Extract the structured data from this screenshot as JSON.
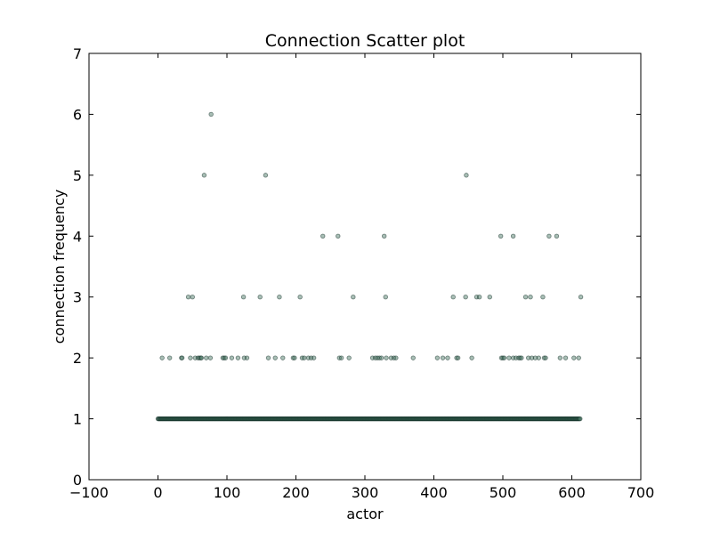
{
  "chart_data": {
    "type": "scatter",
    "title": "Connection Scatter plot",
    "xlabel": "actor",
    "ylabel": "connection frequency",
    "xlim": [
      -100,
      700
    ],
    "ylim": [
      0,
      7
    ],
    "xticks": [
      "−100",
      "0",
      "100",
      "200",
      "300",
      "400",
      "500",
      "600",
      "700"
    ],
    "yticks": [
      "0",
      "1",
      "2",
      "3",
      "4",
      "5",
      "6",
      "7"
    ],
    "grid": false,
    "legend": "none",
    "point_color": "#3d6e5c",
    "baseline": {
      "y": 1,
      "x_from": 0,
      "x_to": 612,
      "step": 1
    },
    "points": [
      {
        "x": 77,
        "y": 6
      },
      {
        "x": 67,
        "y": 5
      },
      {
        "x": 156,
        "y": 5
      },
      {
        "x": 447,
        "y": 5
      },
      {
        "x": 239,
        "y": 4
      },
      {
        "x": 261,
        "y": 4
      },
      {
        "x": 328,
        "y": 4
      },
      {
        "x": 497,
        "y": 4
      },
      {
        "x": 515,
        "y": 4
      },
      {
        "x": 567,
        "y": 4
      },
      {
        "x": 578,
        "y": 4
      },
      {
        "x": 44,
        "y": 3
      },
      {
        "x": 50,
        "y": 3
      },
      {
        "x": 124,
        "y": 3
      },
      {
        "x": 148,
        "y": 3
      },
      {
        "x": 176,
        "y": 3
      },
      {
        "x": 206,
        "y": 3
      },
      {
        "x": 283,
        "y": 3
      },
      {
        "x": 330,
        "y": 3
      },
      {
        "x": 428,
        "y": 3
      },
      {
        "x": 446,
        "y": 3
      },
      {
        "x": 462,
        "y": 3
      },
      {
        "x": 466,
        "y": 3
      },
      {
        "x": 481,
        "y": 3
      },
      {
        "x": 533,
        "y": 3
      },
      {
        "x": 540,
        "y": 3
      },
      {
        "x": 558,
        "y": 3
      },
      {
        "x": 613,
        "y": 3
      },
      {
        "x": 6,
        "y": 2
      },
      {
        "x": 17,
        "y": 2
      },
      {
        "x": 34,
        "y": 2
      },
      {
        "x": 35,
        "y": 2
      },
      {
        "x": 47,
        "y": 2
      },
      {
        "x": 54,
        "y": 2
      },
      {
        "x": 58,
        "y": 2
      },
      {
        "x": 60,
        "y": 2
      },
      {
        "x": 62,
        "y": 2
      },
      {
        "x": 63,
        "y": 2
      },
      {
        "x": 70,
        "y": 2
      },
      {
        "x": 76,
        "y": 2
      },
      {
        "x": 94,
        "y": 2
      },
      {
        "x": 96,
        "y": 2
      },
      {
        "x": 98,
        "y": 2
      },
      {
        "x": 107,
        "y": 2
      },
      {
        "x": 116,
        "y": 2
      },
      {
        "x": 125,
        "y": 2
      },
      {
        "x": 129,
        "y": 2
      },
      {
        "x": 160,
        "y": 2
      },
      {
        "x": 170,
        "y": 2
      },
      {
        "x": 181,
        "y": 2
      },
      {
        "x": 196,
        "y": 2
      },
      {
        "x": 198,
        "y": 2
      },
      {
        "x": 209,
        "y": 2
      },
      {
        "x": 212,
        "y": 2
      },
      {
        "x": 218,
        "y": 2
      },
      {
        "x": 222,
        "y": 2
      },
      {
        "x": 226,
        "y": 2
      },
      {
        "x": 263,
        "y": 2
      },
      {
        "x": 266,
        "y": 2
      },
      {
        "x": 277,
        "y": 2
      },
      {
        "x": 311,
        "y": 2
      },
      {
        "x": 315,
        "y": 2
      },
      {
        "x": 318,
        "y": 2
      },
      {
        "x": 321,
        "y": 2
      },
      {
        "x": 324,
        "y": 2
      },
      {
        "x": 331,
        "y": 2
      },
      {
        "x": 338,
        "y": 2
      },
      {
        "x": 342,
        "y": 2
      },
      {
        "x": 345,
        "y": 2
      },
      {
        "x": 370,
        "y": 2
      },
      {
        "x": 405,
        "y": 2
      },
      {
        "x": 413,
        "y": 2
      },
      {
        "x": 420,
        "y": 2
      },
      {
        "x": 433,
        "y": 2
      },
      {
        "x": 435,
        "y": 2
      },
      {
        "x": 455,
        "y": 2
      },
      {
        "x": 498,
        "y": 2
      },
      {
        "x": 500,
        "y": 2
      },
      {
        "x": 502,
        "y": 2
      },
      {
        "x": 509,
        "y": 2
      },
      {
        "x": 515,
        "y": 2
      },
      {
        "x": 519,
        "y": 2
      },
      {
        "x": 523,
        "y": 2
      },
      {
        "x": 525,
        "y": 2
      },
      {
        "x": 527,
        "y": 2
      },
      {
        "x": 537,
        "y": 2
      },
      {
        "x": 542,
        "y": 2
      },
      {
        "x": 547,
        "y": 2
      },
      {
        "x": 552,
        "y": 2
      },
      {
        "x": 560,
        "y": 2
      },
      {
        "x": 562,
        "y": 2
      },
      {
        "x": 583,
        "y": 2
      },
      {
        "x": 591,
        "y": 2
      },
      {
        "x": 603,
        "y": 2
      },
      {
        "x": 610,
        "y": 2
      }
    ]
  }
}
